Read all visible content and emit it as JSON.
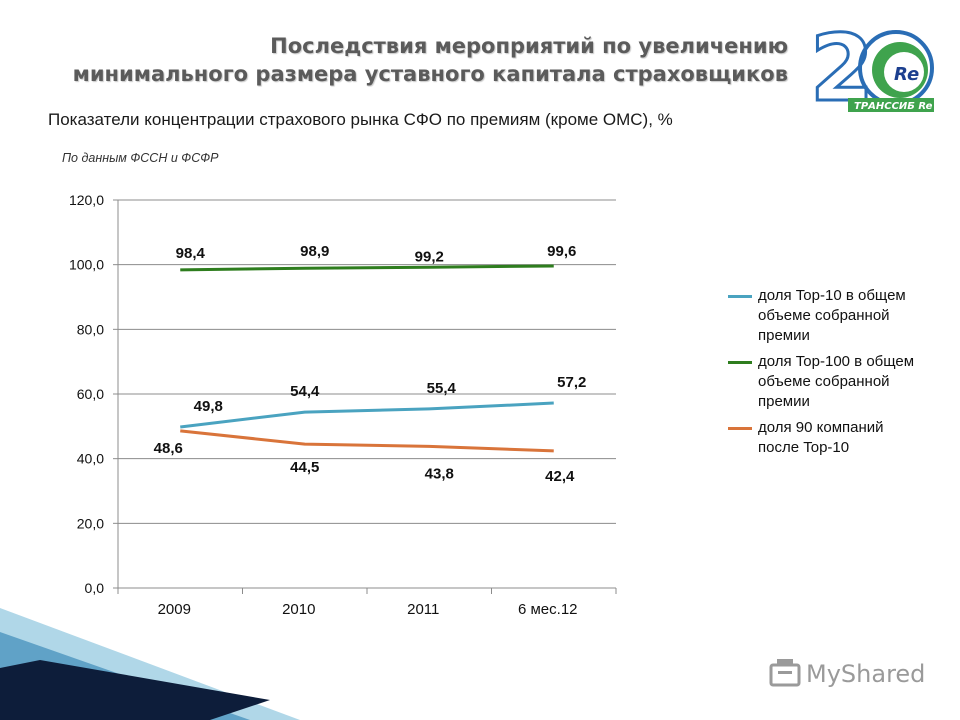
{
  "slide": {
    "title_line1": "Последствия мероприятий по увеличению",
    "title_line2": "минимального размера уставного капитала страховщиков",
    "subtitle": "Показатели концентрации страхового рынка СФО по премиям (кроме ОМС), %",
    "source_note": "По данным ФССН и ФСФР",
    "logo_text": "Re",
    "logo_brand": "ТРАНССИБ Re",
    "watermark": "MyShared"
  },
  "chart_data": {
    "type": "line",
    "categories": [
      "2009",
      "2010",
      "2011",
      "6 мес.12"
    ],
    "ylim": [
      0,
      120
    ],
    "yticks": [
      "0,0",
      "20,0",
      "40,0",
      "60,0",
      "80,0",
      "100,0",
      "120,0"
    ],
    "grid": true,
    "legend_position": "right",
    "series": [
      {
        "name": "доля Top-10 в общем объеме собранной премии",
        "color": "#4aa3c0",
        "values": [
          49.8,
          54.4,
          55.4,
          57.2
        ],
        "labels": [
          "49,8",
          "54,4",
          "55,4",
          "57,2"
        ]
      },
      {
        "name": "доля Top-100 в общем объеме собранной премии",
        "color": "#2e7d1e",
        "values": [
          98.4,
          98.9,
          99.2,
          99.6
        ],
        "labels": [
          "98,4",
          "98,9",
          "99,2",
          "99,6"
        ]
      },
      {
        "name": "доля 90 компаний после Top-10",
        "color": "#d9743a",
        "values": [
          48.6,
          44.5,
          43.8,
          42.4
        ],
        "labels": [
          "48,6",
          "44,5",
          "43,8",
          "42,4"
        ]
      }
    ]
  }
}
